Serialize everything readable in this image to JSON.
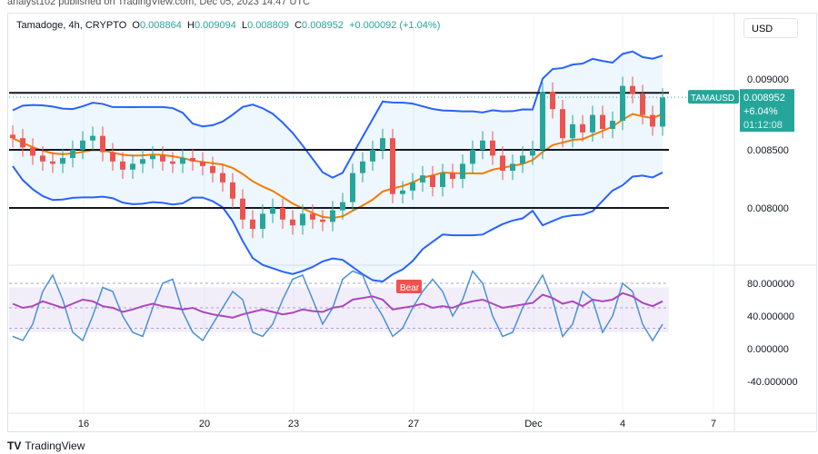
{
  "publisher": "analyst102 published on TradingView.com, Dec 05, 2023 14:47 UTC",
  "legend": {
    "symbol": "Tamadoge, 4h, CRYPTO",
    "o_label": "O",
    "o": "0.008864",
    "h_label": "H",
    "h": "0.009094",
    "l_label": "L",
    "l": "0.008809",
    "c_label": "C",
    "c": "0.008952",
    "change": "+0.000092 (+1.04%)"
  },
  "currency": "USD",
  "price_tag": {
    "symbol": "TAMAUSD",
    "price": "0.008952",
    "change": "+6.04%",
    "countdown": "01:12:08",
    "color": "#26a69a"
  },
  "bear_label": "Bear",
  "brand": "TradingView",
  "chart_data": {
    "type": "candlestick",
    "price_axis": {
      "ticks": [
        "0.009000",
        "0.008500",
        "0.008000"
      ],
      "range": [
        0.00772,
        0.0093
      ]
    },
    "horizontal_lines": [
      0.00899,
      0.0085,
      0.008
    ],
    "x_ticks": [
      "16",
      "20",
      "23",
      "27",
      "Dec",
      "4",
      "7"
    ],
    "closes": [
      0.0086,
      0.00852,
      0.00845,
      0.0084,
      0.00838,
      0.00843,
      0.0085,
      0.00858,
      0.00862,
      0.00848,
      0.0084,
      0.00833,
      0.00838,
      0.00842,
      0.00845,
      0.0084,
      0.00838,
      0.00843,
      0.0084,
      0.00836,
      0.0083,
      0.00822,
      0.00808,
      0.0079,
      0.00782,
      0.00795,
      0.008,
      0.0079,
      0.00785,
      0.00795,
      0.0079,
      0.00788,
      0.00798,
      0.00805,
      0.0083,
      0.0084,
      0.0085,
      0.0086,
      0.00812,
      0.00815,
      0.00822,
      0.00828,
      0.00818,
      0.0083,
      0.00825,
      0.00838,
      0.0085,
      0.00858,
      0.00845,
      0.00832,
      0.00838,
      0.00845,
      0.0085,
      0.009,
      0.00885,
      0.0086,
      0.00872,
      0.00865,
      0.0088,
      0.00868,
      0.00875,
      0.00905,
      0.00898,
      0.0088,
      0.0087,
      0.00895
    ],
    "oscillator": {
      "ticks": [
        "80.000000",
        "40.000000",
        "0.000000",
        "-40.000000"
      ],
      "band": [
        20,
        75
      ],
      "rsi": [
        55,
        50,
        52,
        58,
        54,
        50,
        55,
        60,
        58,
        52,
        50,
        45,
        48,
        52,
        55,
        52,
        50,
        48,
        50,
        45,
        42,
        40,
        38,
        42,
        45,
        48,
        45,
        42,
        44,
        48,
        46,
        45,
        50,
        52,
        60,
        62,
        64,
        60,
        48,
        50,
        52,
        55,
        50,
        52,
        50,
        55,
        58,
        60,
        55,
        50,
        52,
        54,
        56,
        66,
        62,
        55,
        58,
        52,
        60,
        58,
        60,
        68,
        64,
        56,
        52,
        58
      ],
      "stoch": [
        15,
        10,
        30,
        70,
        90,
        60,
        20,
        10,
        40,
        75,
        70,
        40,
        20,
        15,
        50,
        80,
        85,
        45,
        20,
        10,
        30,
        50,
        70,
        60,
        20,
        15,
        30,
        60,
        85,
        90,
        60,
        30,
        50,
        85,
        95,
        90,
        60,
        40,
        15,
        25,
        50,
        70,
        85,
        70,
        40,
        60,
        95,
        80,
        40,
        15,
        20,
        50,
        70,
        90,
        60,
        15,
        30,
        70,
        60,
        20,
        40,
        80,
        70,
        30,
        10,
        30
      ]
    }
  }
}
